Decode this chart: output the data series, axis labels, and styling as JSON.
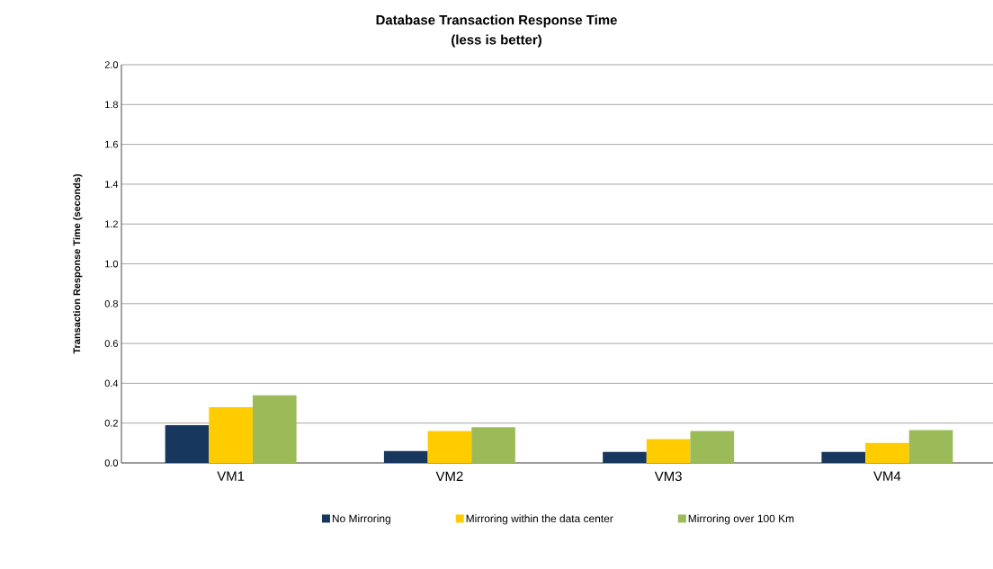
{
  "chart_data": {
    "type": "bar",
    "title": "Database Transaction Response Time",
    "subtitle": "(less is better)",
    "ylabel": "Transaction Response Time (seconds)",
    "categories": [
      "VM1",
      "VM2",
      "VM3",
      "VM4"
    ],
    "series": [
      {
        "name": "No Mirroring",
        "color": "#17375e",
        "values": [
          0.19,
          0.06,
          0.055,
          0.055
        ]
      },
      {
        "name": "Mirroring within the data center",
        "color": "#ffcc00",
        "values": [
          0.28,
          0.16,
          0.12,
          0.1
        ]
      },
      {
        "name": "Mirroring over 100 Km",
        "color": "#9bbb59",
        "values": [
          0.34,
          0.18,
          0.16,
          0.165
        ]
      }
    ],
    "ylim": [
      0,
      2.0
    ],
    "yticks": [
      {
        "value": 0,
        "label": "0.0"
      },
      {
        "value": 0.2,
        "label": "0.2"
      },
      {
        "value": 0.4,
        "label": "0.4"
      },
      {
        "value": 0.6,
        "label": "0.6"
      },
      {
        "value": 0.8,
        "label": "0.8"
      },
      {
        "value": 1.0,
        "label": "1.0"
      },
      {
        "value": 1.2,
        "label": "1.2"
      },
      {
        "value": 1.4,
        "label": "1.4"
      },
      {
        "value": 1.6,
        "label": "1.6"
      },
      {
        "value": 1.8,
        "label": "1.8"
      },
      {
        "value": 2.0,
        "label": "2.0"
      }
    ],
    "grid": "y",
    "legend": "bottom"
  }
}
